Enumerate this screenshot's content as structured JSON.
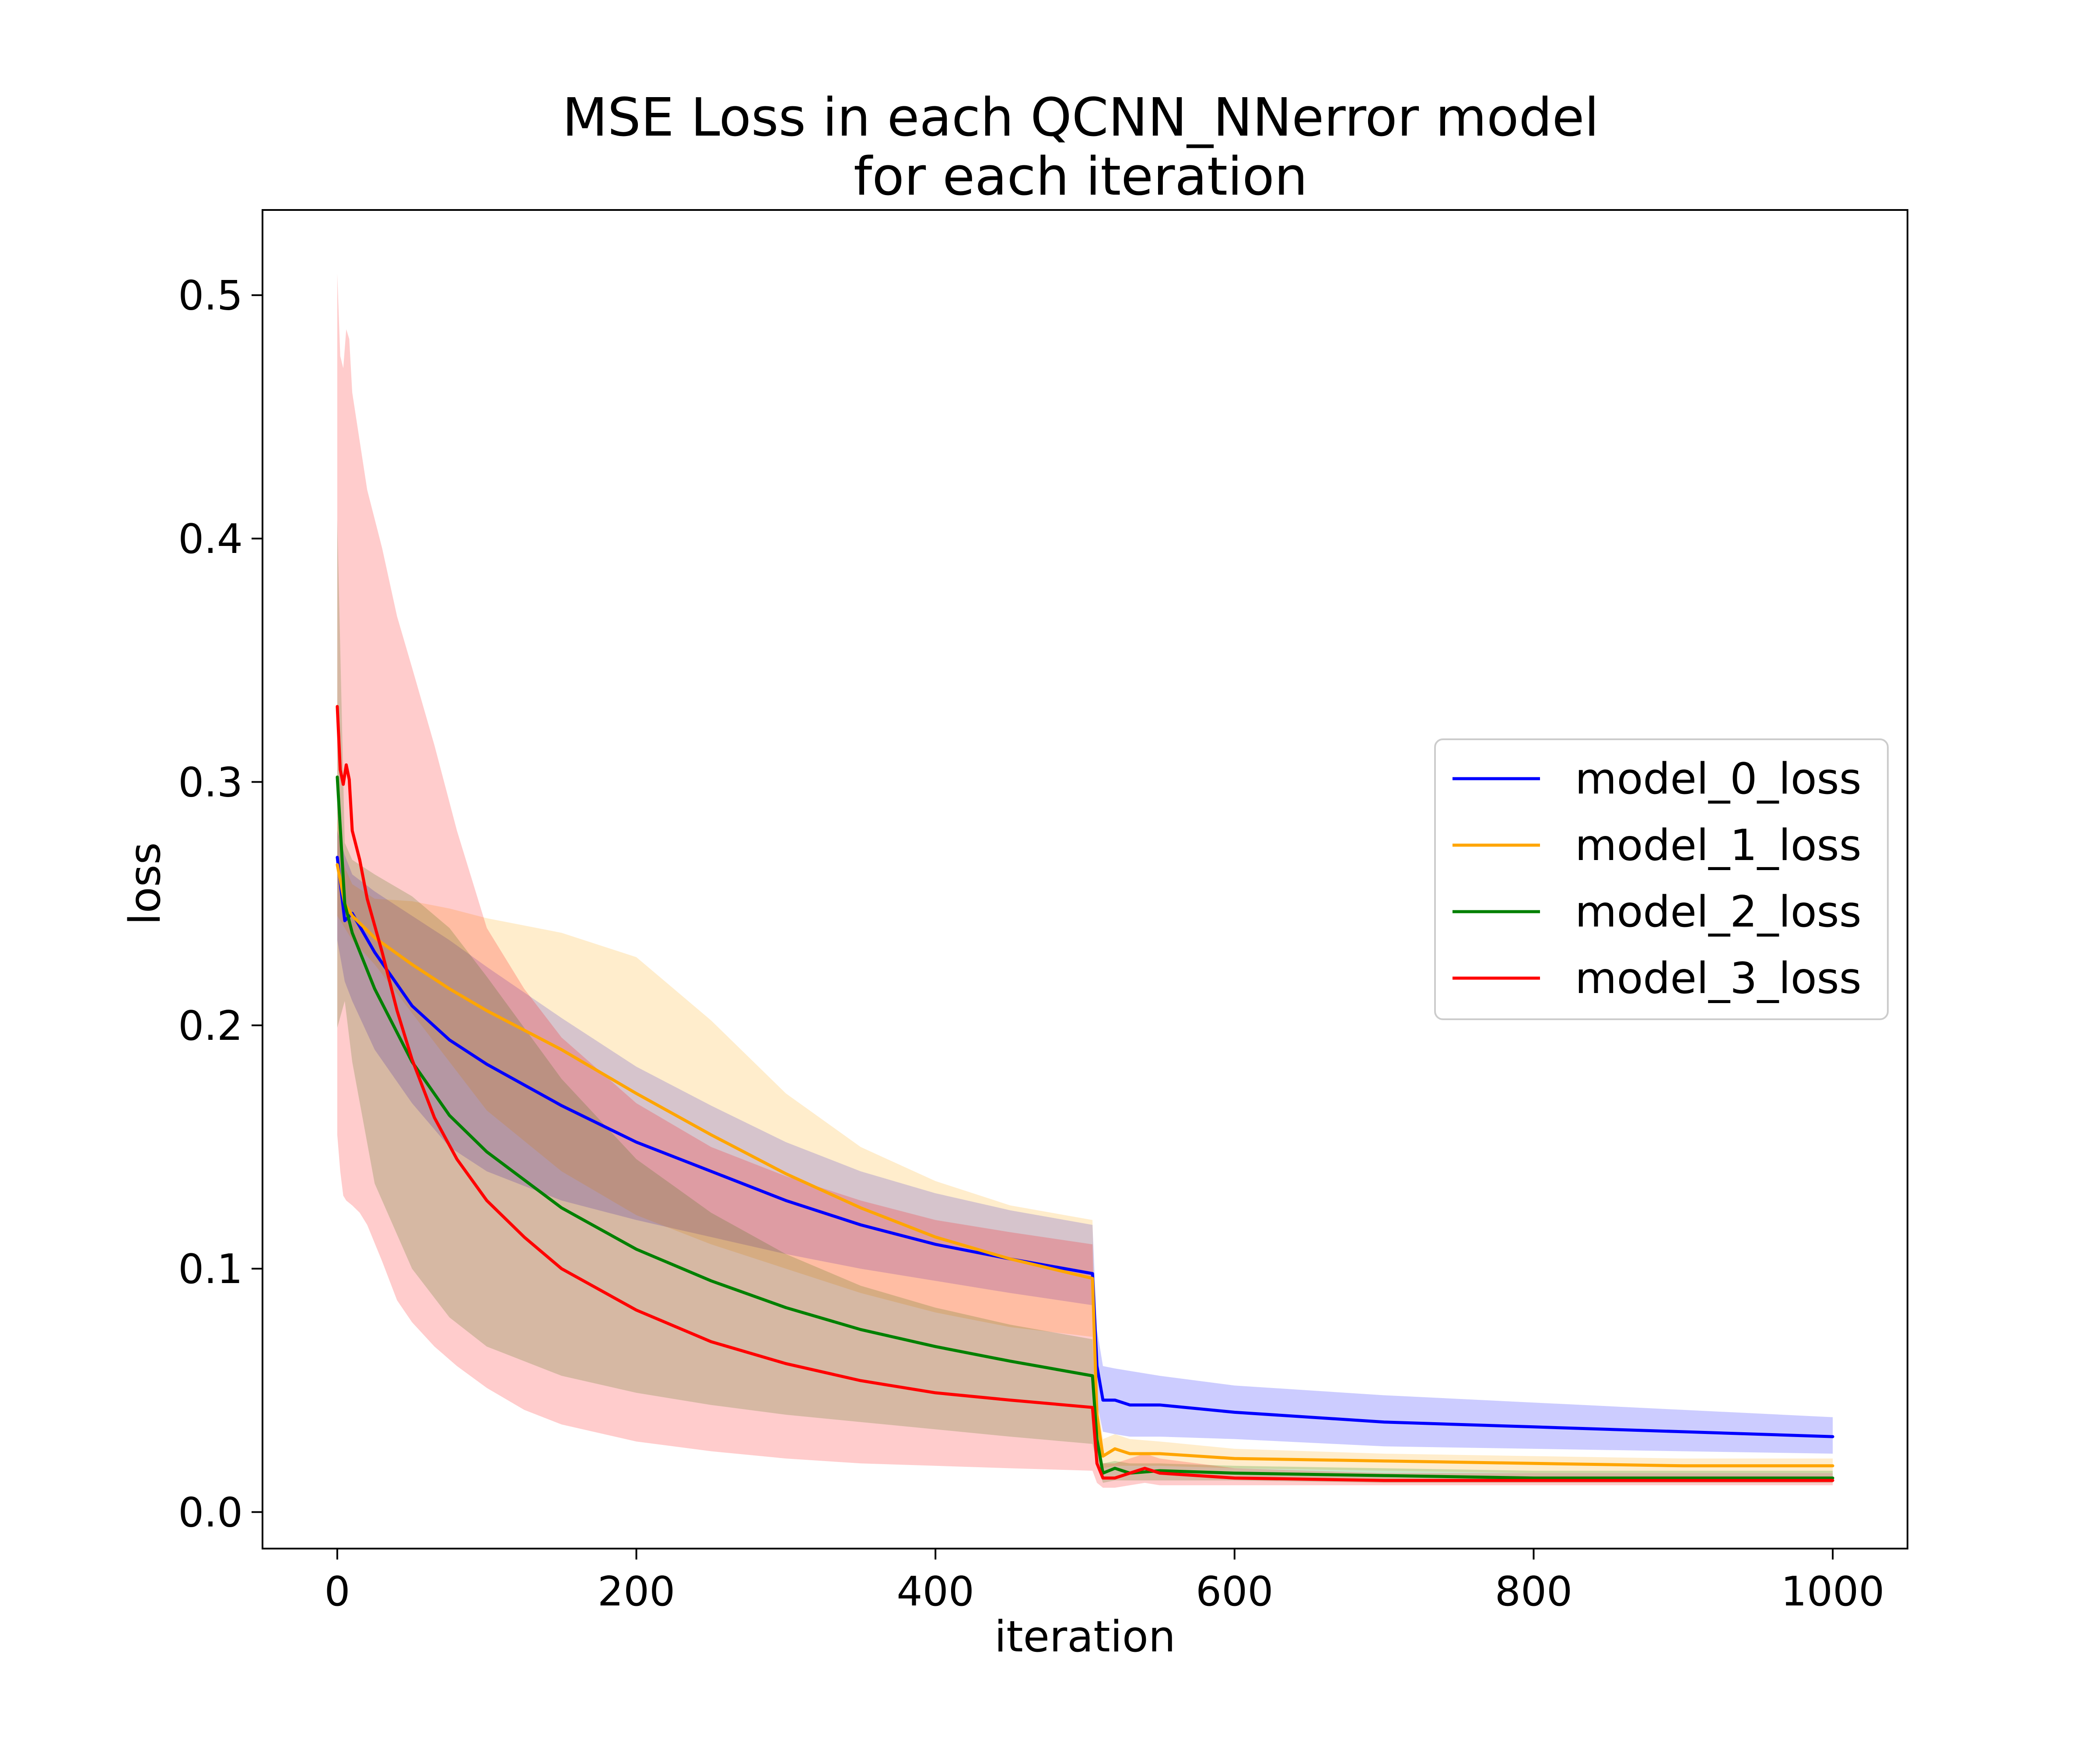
{
  "chart_data": {
    "type": "line",
    "title": [
      "MSE Loss in each QCNN_NNerror model",
      "for each iteration"
    ],
    "xlabel": "iteration",
    "ylabel": "loss",
    "xlim": [
      -50,
      1050
    ],
    "ylim": [
      -0.015,
      0.535
    ],
    "xticks": [
      0,
      200,
      400,
      600,
      800,
      1000
    ],
    "yticks": [
      0.0,
      0.1,
      0.2,
      0.3,
      0.4,
      0.5
    ],
    "grid": false,
    "legend_position": "center-right",
    "series": [
      {
        "name": "model_0_loss",
        "color": "#0000ff",
        "x": [
          0,
          5,
          10,
          25,
          50,
          75,
          100,
          150,
          200,
          250,
          300,
          350,
          400,
          450,
          505,
          508,
          512,
          520,
          530,
          550,
          600,
          700,
          800,
          900,
          1000
        ],
        "mean": [
          0.269,
          0.243,
          0.246,
          0.23,
          0.208,
          0.194,
          0.184,
          0.167,
          0.152,
          0.14,
          0.128,
          0.118,
          0.11,
          0.104,
          0.098,
          0.06,
          0.046,
          0.046,
          0.044,
          0.044,
          0.041,
          0.037,
          0.035,
          0.033,
          0.031
        ],
        "lower": [
          0.235,
          0.218,
          0.21,
          0.19,
          0.168,
          0.15,
          0.14,
          0.128,
          0.12,
          0.113,
          0.106,
          0.1,
          0.095,
          0.09,
          0.085,
          0.045,
          0.033,
          0.032,
          0.031,
          0.031,
          0.03,
          0.027,
          0.026,
          0.025,
          0.024
        ],
        "upper": [
          0.28,
          0.27,
          0.262,
          0.255,
          0.245,
          0.235,
          0.224,
          0.203,
          0.183,
          0.167,
          0.152,
          0.14,
          0.131,
          0.124,
          0.118,
          0.075,
          0.06,
          0.059,
          0.058,
          0.056,
          0.052,
          0.048,
          0.045,
          0.042,
          0.039
        ]
      },
      {
        "name": "model_1_loss",
        "color": "#ffa500",
        "x": [
          0,
          5,
          10,
          25,
          50,
          75,
          100,
          150,
          200,
          250,
          300,
          350,
          400,
          450,
          505,
          508,
          512,
          520,
          530,
          550,
          600,
          700,
          800,
          900,
          1000
        ],
        "mean": [
          0.266,
          0.25,
          0.245,
          0.236,
          0.225,
          0.215,
          0.206,
          0.19,
          0.172,
          0.155,
          0.139,
          0.125,
          0.113,
          0.104,
          0.096,
          0.04,
          0.023,
          0.026,
          0.024,
          0.024,
          0.022,
          0.021,
          0.02,
          0.019,
          0.019
        ],
        "lower": [
          0.245,
          0.24,
          0.235,
          0.225,
          0.205,
          0.185,
          0.165,
          0.14,
          0.122,
          0.11,
          0.1,
          0.09,
          0.082,
          0.076,
          0.072,
          0.03,
          0.018,
          0.019,
          0.019,
          0.019,
          0.018,
          0.017,
          0.016,
          0.016,
          0.016
        ],
        "upper": [
          0.285,
          0.265,
          0.258,
          0.252,
          0.251,
          0.248,
          0.244,
          0.238,
          0.228,
          0.202,
          0.172,
          0.15,
          0.136,
          0.126,
          0.12,
          0.048,
          0.03,
          0.032,
          0.03,
          0.029,
          0.026,
          0.024,
          0.023,
          0.022,
          0.022
        ]
      },
      {
        "name": "model_2_loss",
        "color": "#008000",
        "x": [
          0,
          5,
          10,
          25,
          50,
          75,
          100,
          150,
          200,
          250,
          300,
          350,
          400,
          450,
          505,
          508,
          512,
          520,
          530,
          550,
          600,
          700,
          800,
          900,
          1000
        ],
        "mean": [
          0.302,
          0.25,
          0.238,
          0.215,
          0.185,
          0.163,
          0.148,
          0.125,
          0.108,
          0.095,
          0.084,
          0.075,
          0.068,
          0.062,
          0.056,
          0.03,
          0.016,
          0.018,
          0.016,
          0.017,
          0.016,
          0.015,
          0.014,
          0.014,
          0.014
        ],
        "lower": [
          0.199,
          0.21,
          0.185,
          0.135,
          0.1,
          0.08,
          0.068,
          0.056,
          0.049,
          0.044,
          0.04,
          0.037,
          0.034,
          0.031,
          0.028,
          0.02,
          0.012,
          0.013,
          0.013,
          0.013,
          0.013,
          0.012,
          0.012,
          0.012,
          0.012
        ],
        "upper": [
          0.408,
          0.275,
          0.268,
          0.262,
          0.253,
          0.24,
          0.22,
          0.178,
          0.145,
          0.123,
          0.106,
          0.093,
          0.084,
          0.077,
          0.071,
          0.035,
          0.02,
          0.021,
          0.02,
          0.02,
          0.019,
          0.018,
          0.017,
          0.017,
          0.017
        ]
      },
      {
        "name": "model_3_loss",
        "color": "#ff0000",
        "x": [
          0,
          2,
          4,
          6,
          8,
          10,
          15,
          20,
          30,
          40,
          50,
          65,
          80,
          100,
          125,
          150,
          200,
          250,
          300,
          350,
          400,
          450,
          505,
          508,
          512,
          520,
          530,
          540,
          550,
          600,
          700,
          800,
          900,
          1000
        ],
        "mean": [
          0.331,
          0.305,
          0.299,
          0.307,
          0.301,
          0.28,
          0.268,
          0.252,
          0.23,
          0.206,
          0.186,
          0.162,
          0.145,
          0.128,
          0.113,
          0.1,
          0.083,
          0.07,
          0.061,
          0.054,
          0.049,
          0.046,
          0.043,
          0.02,
          0.014,
          0.014,
          0.016,
          0.018,
          0.016,
          0.014,
          0.013,
          0.013,
          0.013,
          0.013
        ],
        "lower": [
          0.155,
          0.14,
          0.13,
          0.128,
          0.127,
          0.126,
          0.123,
          0.118,
          0.103,
          0.087,
          0.078,
          0.068,
          0.06,
          0.051,
          0.042,
          0.036,
          0.029,
          0.025,
          0.022,
          0.02,
          0.019,
          0.018,
          0.017,
          0.012,
          0.01,
          0.01,
          0.011,
          0.012,
          0.011,
          0.011,
          0.011,
          0.011,
          0.011,
          0.011
        ],
        "upper": [
          0.509,
          0.475,
          0.47,
          0.486,
          0.482,
          0.46,
          0.44,
          0.42,
          0.396,
          0.368,
          0.347,
          0.315,
          0.28,
          0.24,
          0.215,
          0.195,
          0.168,
          0.15,
          0.138,
          0.128,
          0.12,
          0.115,
          0.11,
          0.03,
          0.02,
          0.02,
          0.022,
          0.024,
          0.022,
          0.018,
          0.016,
          0.016,
          0.016,
          0.016
        ]
      }
    ]
  }
}
